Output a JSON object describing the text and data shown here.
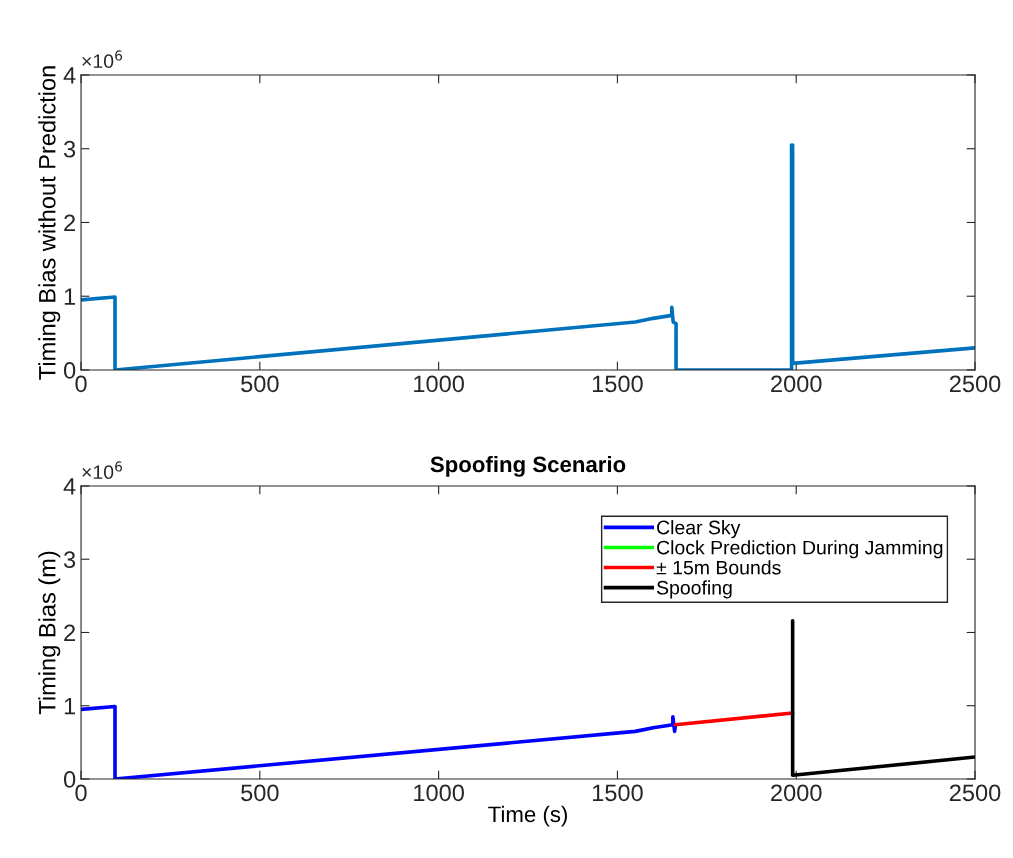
{
  "chart_data": [
    {
      "type": "line",
      "ylabel": "Timing Bias without Prediction",
      "xlim": [
        0,
        2500
      ],
      "xticks": [
        0,
        500,
        1000,
        1500,
        2000,
        2500
      ],
      "ylim": [
        0,
        4
      ],
      "yticks": [
        0,
        1,
        2,
        3,
        4
      ],
      "annotations": [
        "×10$^{6}$"
      ],
      "grid": false,
      "legend": false,
      "series": [
        {
          "color": "#0072bd",
          "x": [
            0,
            95,
            95,
            1550,
            1600,
            1652,
            1652,
            1656,
            1664,
            1664,
            1987,
            1987,
            1990,
            1990,
            2500
          ],
          "values": [
            0.95,
            0.99,
            0,
            0.65,
            0.7,
            0.74,
            0.85,
            0.65,
            0.63,
            0,
            0,
            3.05,
            3.05,
            0.09,
            0.3
          ]
        }
      ]
    },
    {
      "type": "line",
      "title": "Spoofing Scenario",
      "xlabel": "Time (s)",
      "ylabel": "Timing Bias (m)",
      "xlim": [
        0,
        2500
      ],
      "xticks": [
        0,
        500,
        1000,
        1500,
        2000,
        2500
      ],
      "ylim": [
        0,
        4
      ],
      "yticks": [
        0,
        1,
        2,
        3,
        4
      ],
      "annotations": [
        "×10$^{6}$"
      ],
      "grid": false,
      "legend": "top right",
      "series": [
        {
          "name": "Clear Sky",
          "color": "#0000ff",
          "x": [
            0,
            95,
            95,
            1550,
            1600,
            1655,
            1655,
            1660,
            1662
          ],
          "values": [
            0.95,
            0.99,
            0,
            0.65,
            0.7,
            0.74,
            0.85,
            0.65,
            0.73
          ]
        },
        {
          "name": "Clock Prediction During Jamming",
          "color": "#00ff00"
        },
        {
          "name": "± 15m Bounds",
          "color": "#ff0000",
          "x": [
            1662,
            1990
          ],
          "values": [
            0.74,
            0.9
          ]
        },
        {
          "name": "Spoofing",
          "color": "#000000",
          "x": [
            1990,
            1990,
            2500
          ],
          "values": [
            2.16,
            0.05,
            0.3
          ]
        }
      ]
    }
  ]
}
